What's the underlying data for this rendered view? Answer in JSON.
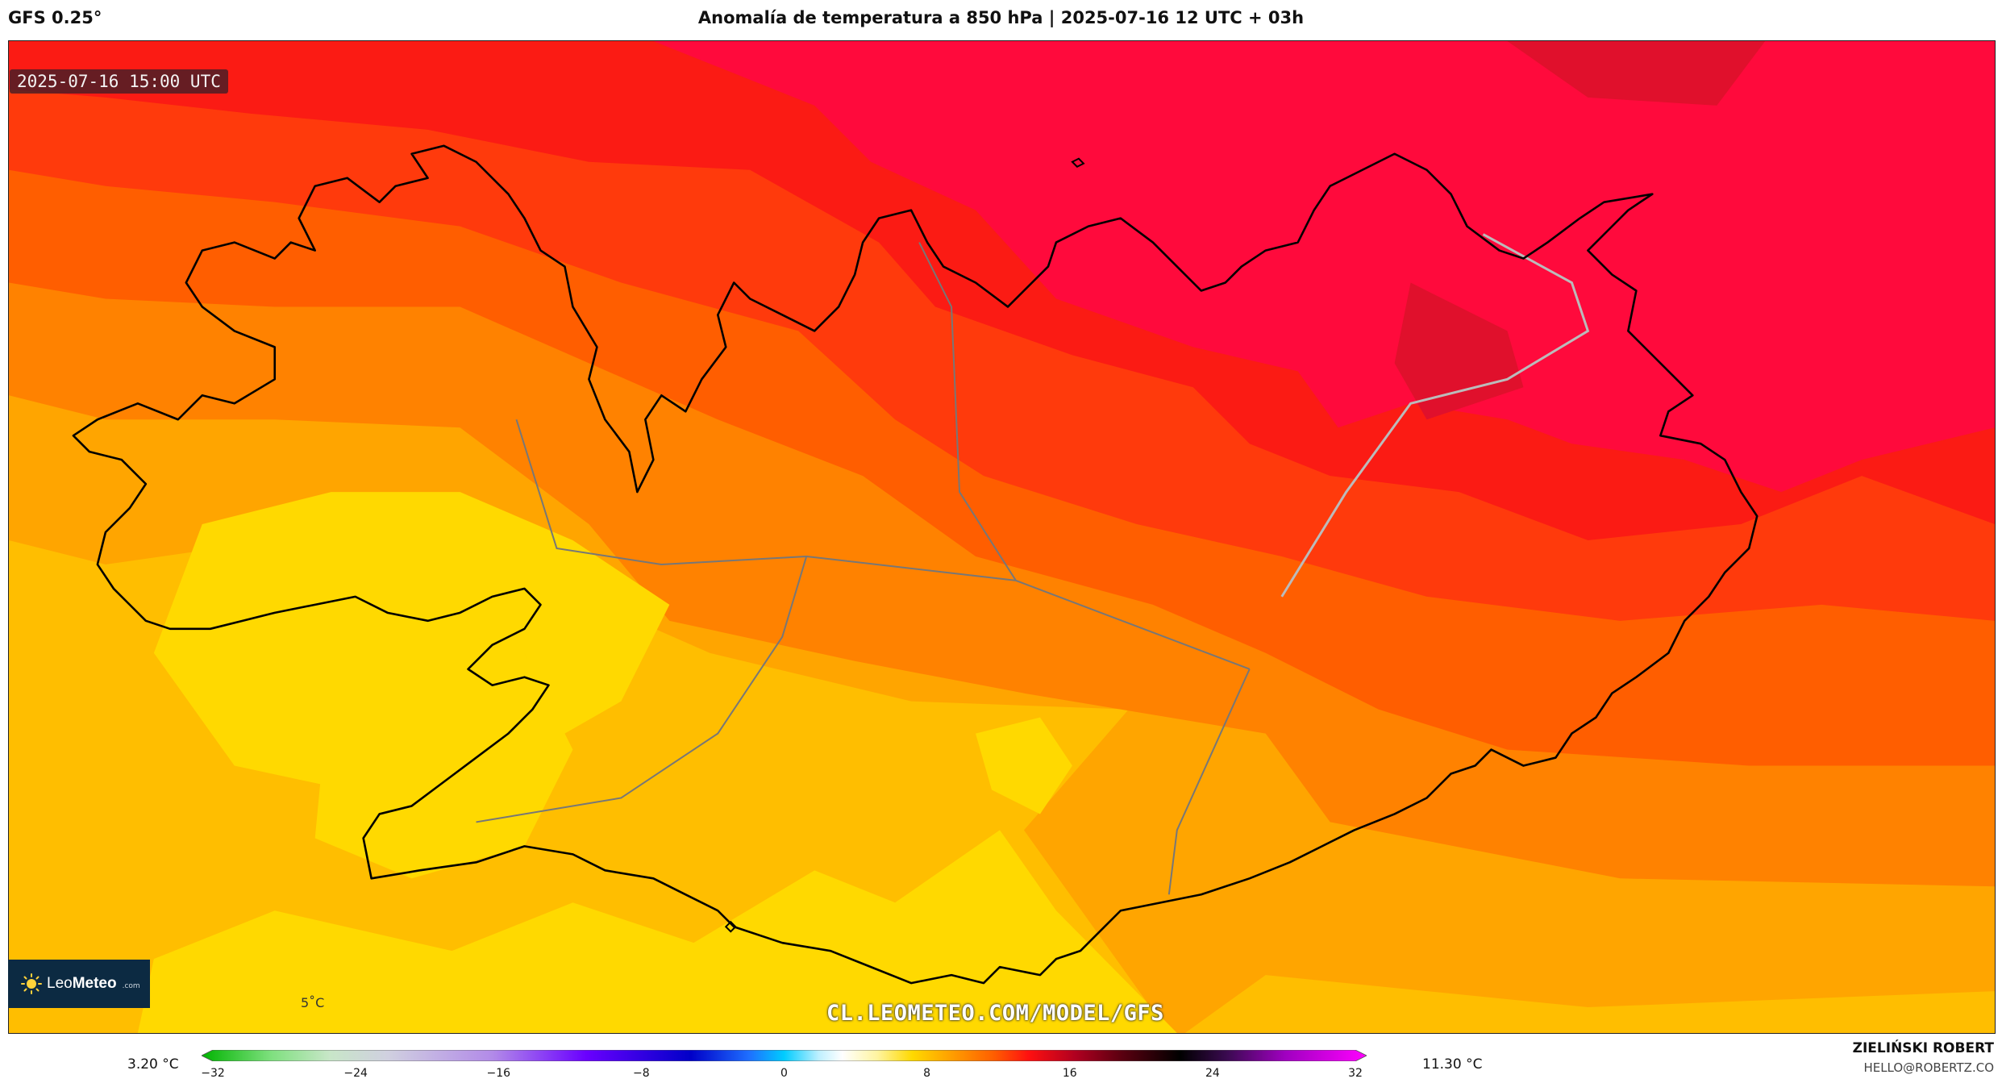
{
  "header": {
    "model": "GFS 0.25°",
    "title": "Anomalía de temperatura a 850 hPa | 2025-07-16 12 UTC + 03h"
  },
  "map": {
    "valid_time": "2025-07-16 15:00 UTC",
    "contour_label": "5˚C",
    "watermark_url": "CL.LEOMETEO.COM/MODEL/GFS",
    "region": "Iceland",
    "colors": {
      "yellow": "#ffd900",
      "gold": "#ffbe00",
      "orange_light": "#ffa500",
      "orange": "#ff8200",
      "orange_deep": "#ff5e00",
      "red_orange": "#ff3a0c",
      "red": "#fb1b14",
      "crimson": "#ff0a3c",
      "crimson_dark": "#e0102c"
    }
  },
  "logo": {
    "name_light": "Leo",
    "name_bold": "Meteo",
    "suffix": ".com"
  },
  "colorbar": {
    "min_label": "3.20 °C",
    "max_label": "11.30 °C",
    "ticks": [
      "−32",
      "−24",
      "−16",
      "−8",
      "0",
      "8",
      "16",
      "24",
      "32"
    ],
    "range": [
      -32,
      32
    ],
    "unit": "°C"
  },
  "credits": {
    "author": "ZIELIŃSKI ROBERT",
    "email": "HELLO@ROBERTZ.CO"
  }
}
